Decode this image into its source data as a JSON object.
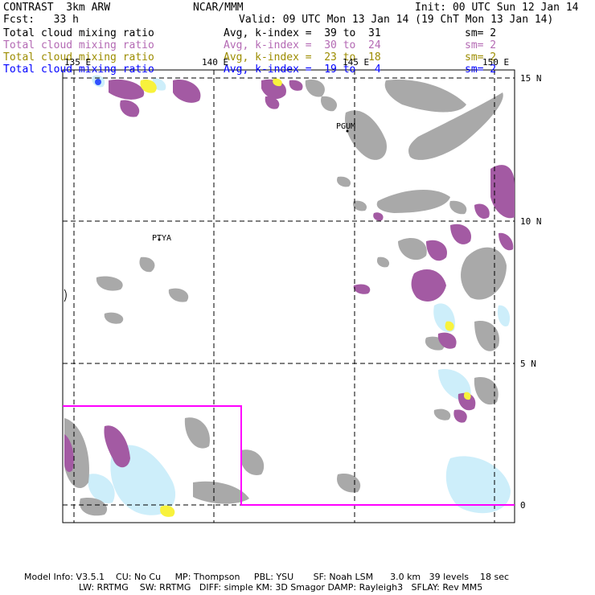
{
  "header": {
    "model": "CONTRAST  3km ARW",
    "center": "NCAR/MMM",
    "init": "Init: 00 UTC Sun 12 Jan 14",
    "fcst": "Fcst:   33 h",
    "valid": "Valid: 09 UTC Mon 13 Jan 14 (19 ChT Mon 13 Jan 14)"
  },
  "fields": [
    {
      "name": "Total cloud mixing ratio",
      "range": "Avg, k-index =  39 to  31",
      "sm": "sm= 2",
      "color": "#000000"
    },
    {
      "name": "Total cloud mixing ratio",
      "range": "Avg, k-index =  30 to  24",
      "sm": "sm= 2",
      "color": "#b46ab4"
    },
    {
      "name": "Total cloud mixing ratio",
      "range": "Avg, k-index =  23 to  18",
      "sm": "sm= 2",
      "color": "#9c8c00"
    },
    {
      "name": "Total cloud mixing ratio",
      "range": "Avg, k-index =  19 to   4",
      "sm": "sm= 2",
      "color": "#0000ff"
    }
  ],
  "map": {
    "lon_labels": [
      "135 E",
      "140 E",
      "145 E",
      "150 E"
    ],
    "lat_labels": [
      "15 N",
      "10 N",
      "5 N",
      "0"
    ],
    "stations": [
      "PGUM",
      "PTYA"
    ],
    "domain_box_color": "#ff00ff",
    "colors": {
      "gray": "#a9a9a9",
      "purple": "#a35aa3",
      "yellow": "#f8f23c",
      "lightblue": "#cdeefa",
      "blue": "#3050ff"
    }
  },
  "footer": {
    "line1": "Model Info: V3.5.1    CU: No Cu     MP: Thompson     PBL: YSU       SF: Noah LSM      3.0 km   39 levels    18 sec",
    "line2": "LW: RRTMG    SW: RRTMG   DIFF: simple KM: 3D Smagor DAMP: Rayleigh3   SFLAY: Rev MM5"
  }
}
